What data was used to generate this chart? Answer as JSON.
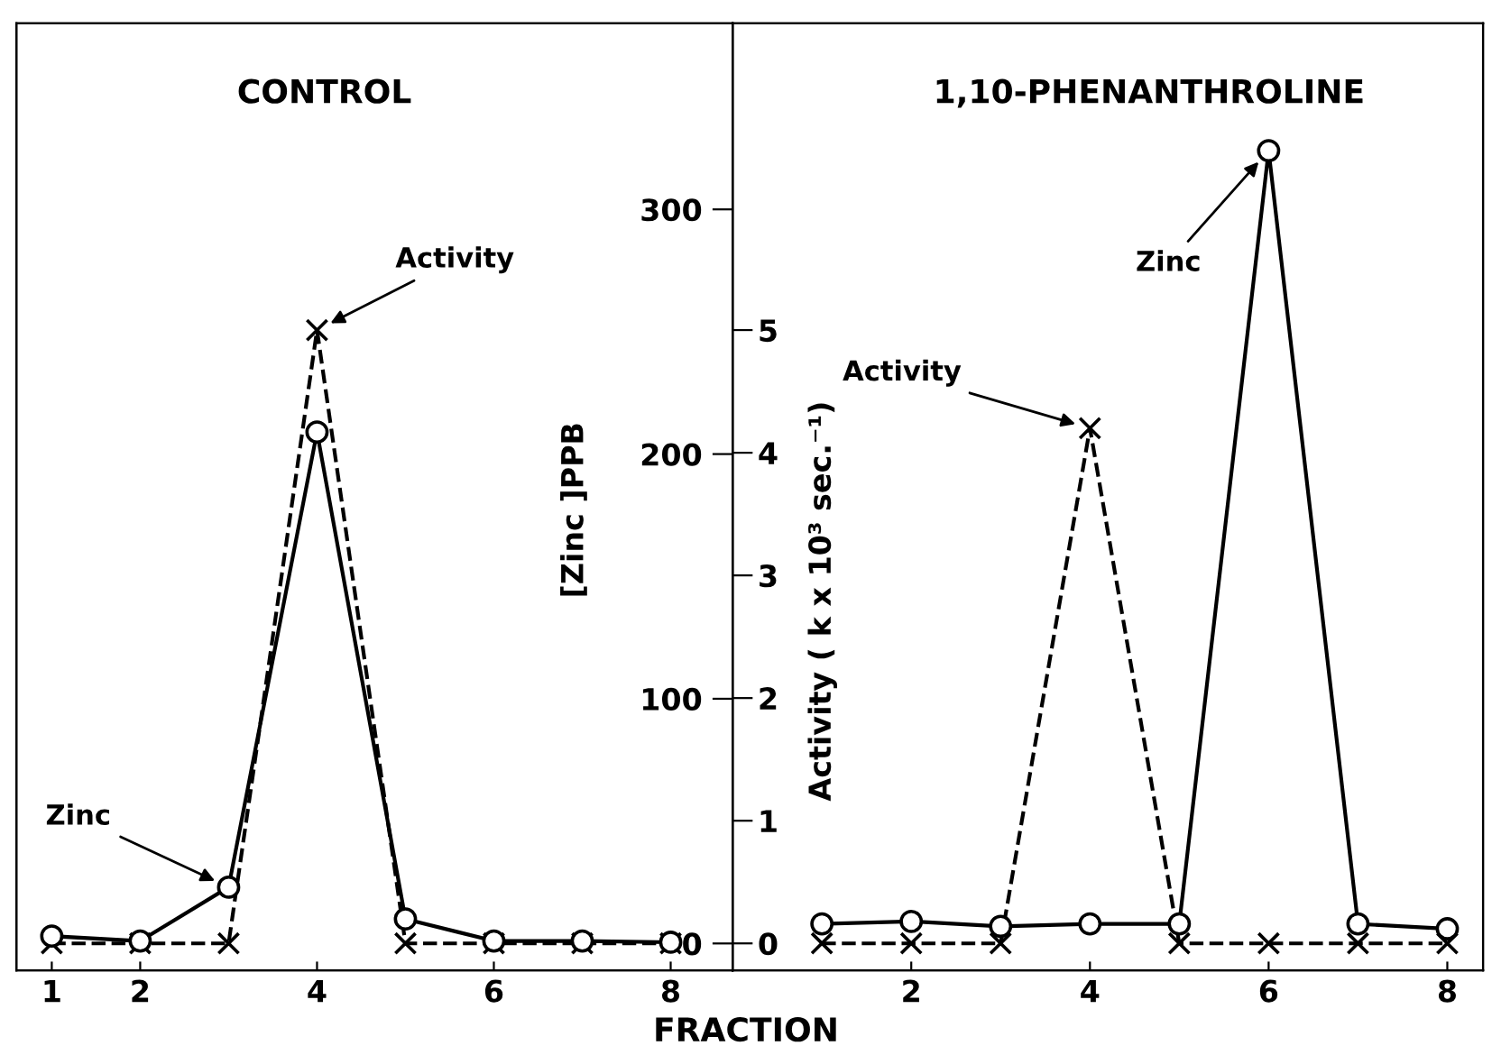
{
  "chart_data": [
    {
      "type": "line",
      "title": "CONTROL",
      "xlabel": "FRACTION",
      "ylabel": "[Zinc ]PPB",
      "y2label": "Activity ( k x 10³ sec.⁻¹)",
      "x": [
        1,
        2,
        3,
        4,
        5,
        6,
        7,
        8
      ],
      "xlim": [
        0.6,
        8.7
      ],
      "xticks": [
        1,
        2,
        4,
        6,
        8
      ],
      "ylim": [
        -11,
        376
      ],
      "yticks": [
        0,
        100,
        200,
        300
      ],
      "y2lim": [
        -0.22,
        7.5
      ],
      "y2ticks": [
        0,
        1,
        2,
        3,
        4,
        5
      ],
      "legend": false,
      "grid": false,
      "series": [
        {
          "name": "Zinc",
          "color": "#000000",
          "marker": "circle",
          "line_style": "solid",
          "values": [
            3,
            1,
            23,
            209,
            10,
            1,
            1,
            0.5
          ]
        },
        {
          "name": "Activity",
          "color": "#000000",
          "marker": "cross",
          "line_style": "dashed",
          "axis": "y2",
          "values": [
            0,
            0,
            0,
            5.0,
            0,
            0,
            0,
            0
          ]
        }
      ]
    },
    {
      "type": "line",
      "title": "1,10-PHENANTHROLINE",
      "x": [
        1,
        2,
        3,
        4,
        5,
        6,
        7,
        8
      ],
      "xlim": [
        0,
        8.4
      ],
      "xticks": [
        2,
        4,
        6,
        8
      ],
      "ylim": [
        -11,
        376
      ],
      "yticks": [
        0,
        100,
        200,
        300
      ],
      "y2lim": [
        -0.22,
        7.5
      ],
      "y2ticks": [
        0,
        1,
        2,
        3,
        4,
        5
      ],
      "tick_labels": "x",
      "legend": false,
      "grid": false,
      "series": [
        {
          "name": "Zinc",
          "color": "#000000",
          "marker": "circle",
          "line_style": "solid",
          "values": [
            8,
            9,
            7,
            8,
            8,
            324,
            8,
            6
          ]
        },
        {
          "name": "Activity",
          "color": "#000000",
          "marker": "cross",
          "line_style": "dashed",
          "axis": "y2",
          "values": [
            0,
            0,
            0,
            4.2,
            0,
            0,
            0,
            0
          ]
        }
      ]
    }
  ]
}
